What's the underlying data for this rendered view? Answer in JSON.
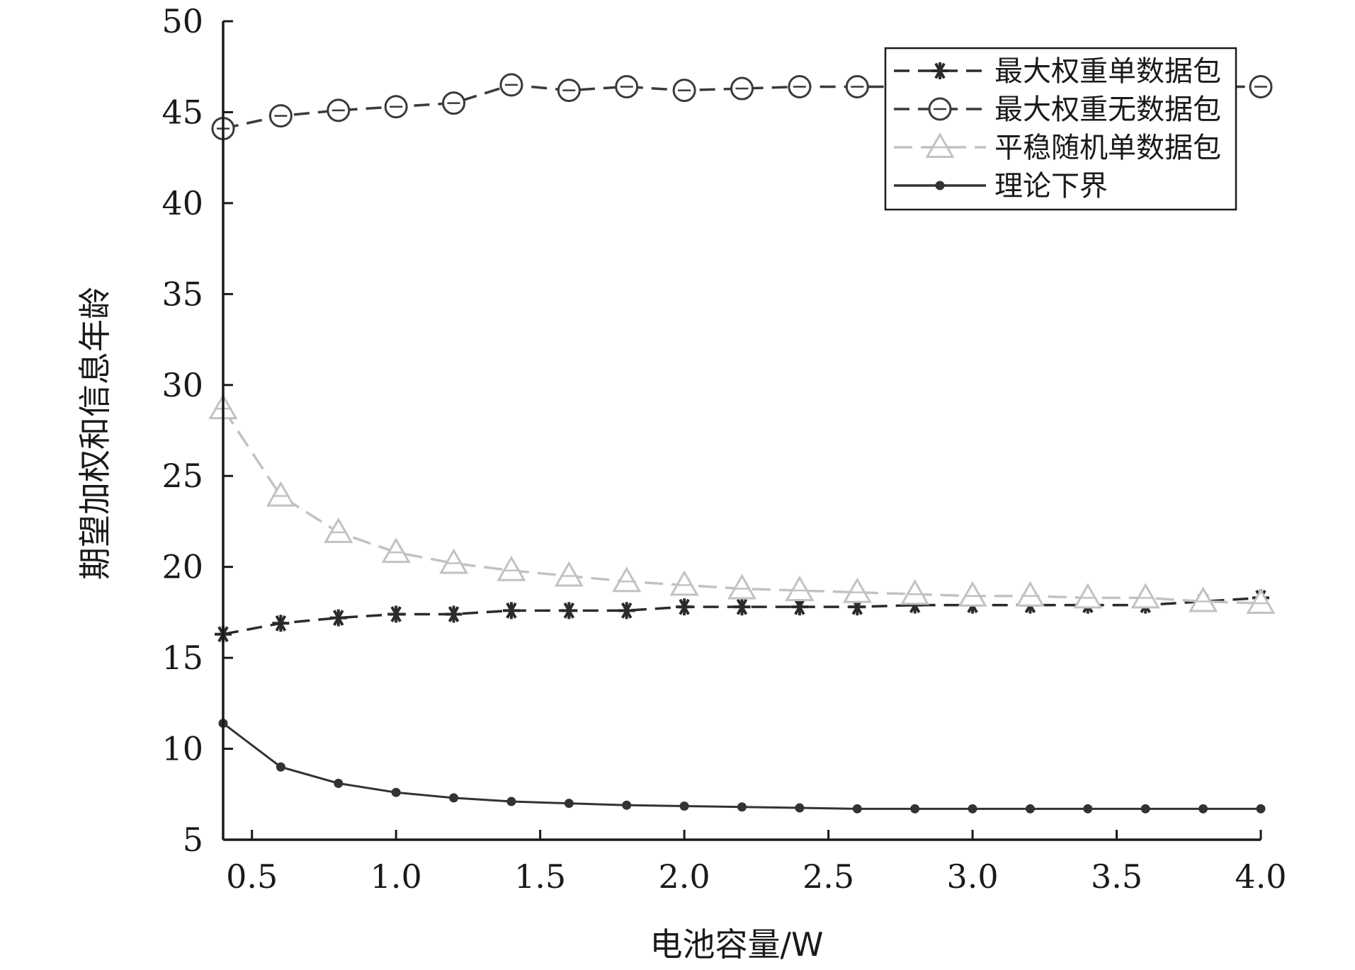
{
  "chart_data": {
    "type": "line",
    "title": "",
    "xlabel": "电池容量/W",
    "ylabel": "期望加权和信息年龄",
    "xlim": [
      0.4,
      4.0
    ],
    "ylim": [
      5,
      50
    ],
    "xticks": [
      0.5,
      1.0,
      1.5,
      2.0,
      2.5,
      3.0,
      3.5,
      4.0
    ],
    "xtick_labels": [
      "0.5",
      "1.0",
      "1.5",
      "2.0",
      "2.5",
      "3.0",
      "3.5",
      "4.0"
    ],
    "yticks": [
      5,
      10,
      15,
      20,
      25,
      30,
      35,
      40,
      45,
      50
    ],
    "ytick_labels": [
      "5",
      "10",
      "15",
      "20",
      "25",
      "30",
      "35",
      "40",
      "45",
      "50"
    ],
    "grid": false,
    "legend_position": "top-right",
    "x": [
      0.4,
      0.6,
      0.8,
      1.0,
      1.2,
      1.4,
      1.6,
      1.8,
      2.0,
      2.2,
      2.4,
      2.6,
      2.8,
      3.0,
      3.2,
      3.4,
      3.6,
      3.8,
      4.0
    ],
    "series": [
      {
        "name": "最大权重单数据包",
        "marker": "asterisk",
        "line": "dashed",
        "color": "#2b2b2b",
        "values": [
          16.3,
          16.9,
          17.2,
          17.4,
          17.4,
          17.6,
          17.6,
          17.6,
          17.8,
          17.8,
          17.8,
          17.8,
          17.9,
          17.9,
          17.9,
          17.9,
          17.9,
          18.1,
          18.3
        ]
      },
      {
        "name": "最大权重无数据包",
        "marker": "circle",
        "line": "dashed",
        "color": "#3a3a3a",
        "values": [
          44.1,
          44.8,
          45.1,
          45.3,
          45.5,
          46.5,
          46.2,
          46.4,
          46.2,
          46.3,
          46.4,
          46.4,
          46.4,
          46.4,
          46.4,
          46.4,
          46.4,
          46.4,
          46.4
        ]
      },
      {
        "name": "平稳随机单数据包",
        "marker": "triangle",
        "line": "dashed",
        "color": "#c2c2c2",
        "values": [
          28.7,
          23.9,
          21.9,
          20.8,
          20.2,
          19.8,
          19.5,
          19.2,
          19.0,
          18.8,
          18.7,
          18.6,
          18.5,
          18.4,
          18.4,
          18.3,
          18.3,
          18.1,
          18.0
        ]
      },
      {
        "name": "理论下界",
        "marker": "dot",
        "line": "solid",
        "color": "#333333",
        "values": [
          11.4,
          9.0,
          8.1,
          7.6,
          7.3,
          7.1,
          7.0,
          6.9,
          6.85,
          6.8,
          6.75,
          6.7,
          6.7,
          6.7,
          6.7,
          6.7,
          6.7,
          6.7,
          6.7
        ]
      }
    ]
  }
}
